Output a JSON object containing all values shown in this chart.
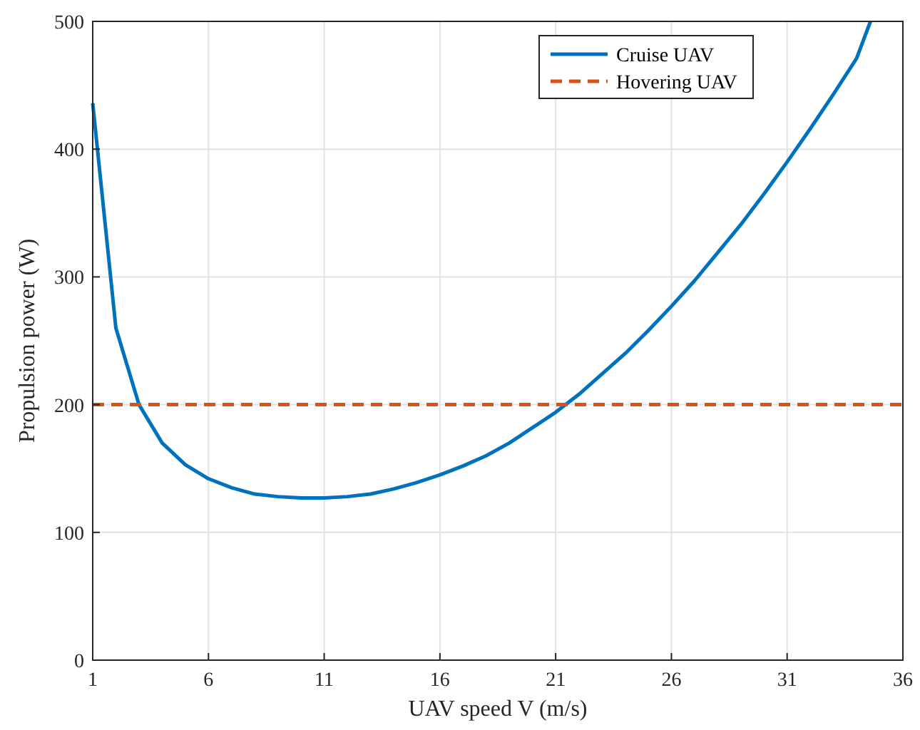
{
  "chart_data": {
    "type": "line",
    "xlabel": "UAV speed V (m/s)",
    "ylabel": "Propulsion power (W)",
    "xlim": [
      1,
      36
    ],
    "xticks": [
      1,
      6,
      11,
      16,
      21,
      26,
      31,
      36
    ],
    "ylim": [
      0,
      500
    ],
    "yticks": [
      0,
      100,
      200,
      300,
      400,
      500
    ],
    "grid": true,
    "legend": "top right",
    "line_style": "solid",
    "series": [
      {
        "name": "Cruise UAV",
        "color": "#0072bd",
        "x": [
          1,
          2,
          3,
          4,
          5,
          6,
          7,
          8,
          9,
          10,
          11,
          12,
          13,
          14,
          15,
          16,
          17,
          18,
          19,
          20,
          21,
          22,
          23,
          24,
          25,
          26,
          27,
          28,
          29,
          30,
          31,
          32,
          33,
          34,
          34.6
        ],
        "values": [
          436,
          260,
          200,
          170,
          153,
          142,
          135,
          130,
          128,
          127,
          127,
          128,
          130,
          134,
          139,
          145,
          152,
          160,
          170,
          182,
          194,
          208,
          224,
          240,
          258,
          277,
          297,
          319,
          341,
          365,
          390,
          416,
          443,
          471,
          500
        ]
      },
      {
        "name": "Hovering UAV",
        "color": "#d95319",
        "x": [
          1,
          36
        ],
        "values": [
          200,
          200
        ],
        "line_style": "dashed"
      }
    ]
  }
}
